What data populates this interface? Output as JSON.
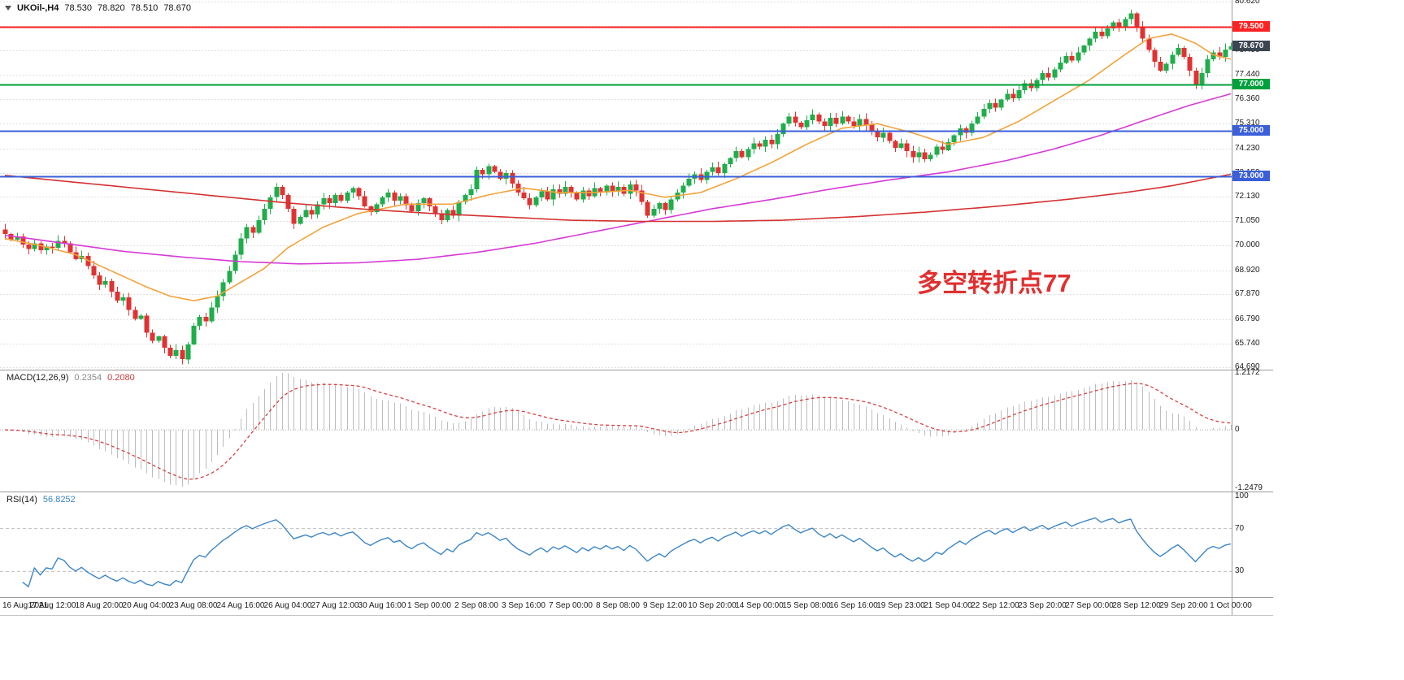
{
  "header": {
    "symbol": "UKOil-,H4",
    "open": "78.530",
    "high": "78.820",
    "low": "78.510",
    "close": "78.670"
  },
  "annotation": {
    "text": "多空转折点77",
    "color": "#e03030"
  },
  "colors": {
    "up": "#1fae4b",
    "down": "#e03232",
    "ma_fast": "#f2a33c",
    "ma_mid": "#d63ad6",
    "ma_slow": "#d43131",
    "macd_hist": "#bdbdbd",
    "macd_signal": "#d64040",
    "rsi_line": "#3c85c6",
    "current_badge": "#3c4652"
  },
  "price_axis": {
    "min": 64.6,
    "max": 80.68,
    "labels": [
      80.62,
      79.55,
      78.49,
      77.44,
      76.36,
      75.31,
      74.23,
      73.15,
      72.13,
      71.05,
      70.0,
      68.92,
      67.87,
      66.79,
      65.74,
      64.69
    ]
  },
  "chart_data": {
    "type": "candlestick",
    "symbol": "UKOil-",
    "timeframe": "H4",
    "title": "UKOil-,H4 78.530 78.820 78.510 78.670",
    "bars_per_label": 8,
    "x_labels": [
      "16 Aug 2021",
      "17 Aug 12:00",
      "18 Aug 20:00",
      "20 Aug 04:00",
      "23 Aug 08:00",
      "24 Aug 16:00",
      "26 Aug 04:00",
      "27 Aug 12:00",
      "30 Aug 16:00",
      "1 Sep 00:00",
      "2 Sep 08:00",
      "3 Sep 16:00",
      "7 Sep 00:00",
      "8 Sep 08:00",
      "9 Sep 12:00",
      "10 Sep 20:00",
      "14 Sep 00:00",
      "15 Sep 08:00",
      "16 Sep 16:00",
      "19 Sep 23:00",
      "21 Sep 04:00",
      "22 Sep 12:00",
      "23 Sep 20:00",
      "27 Sep 00:00",
      "28 Sep 12:00",
      "29 Sep 20:00",
      "1 Oct 00:00"
    ],
    "first_open": 70.7,
    "last_high": 78.82,
    "last_low": 78.51,
    "current_price": 78.67,
    "closes": [
      70.5,
      70.25,
      70.4,
      70.05,
      69.85,
      70.1,
      69.8,
      69.95,
      69.9,
      70.2,
      70.1,
      69.7,
      69.4,
      69.55,
      69.1,
      68.7,
      68.3,
      68.45,
      68.0,
      67.6,
      67.75,
      67.2,
      66.8,
      66.95,
      66.2,
      65.85,
      66.05,
      65.55,
      65.2,
      65.45,
      65.05,
      65.7,
      66.5,
      66.9,
      66.7,
      67.3,
      67.8,
      68.4,
      68.9,
      69.6,
      70.3,
      70.8,
      70.55,
      71.1,
      71.6,
      72.1,
      72.55,
      72.2,
      71.6,
      70.95,
      71.25,
      71.55,
      71.35,
      71.8,
      72.05,
      71.85,
      72.2,
      71.95,
      72.3,
      72.5,
      72.15,
      71.7,
      71.45,
      71.8,
      72.1,
      72.3,
      71.95,
      72.15,
      71.75,
      71.5,
      71.85,
      72.05,
      71.7,
      71.4,
      71.1,
      71.55,
      71.3,
      71.9,
      72.2,
      72.45,
      73.3,
      73.1,
      73.45,
      73.2,
      72.9,
      73.15,
      72.7,
      72.3,
      72.05,
      71.75,
      72.1,
      72.35,
      72.0,
      72.45,
      72.25,
      72.55,
      72.3,
      72.0,
      72.4,
      72.15,
      72.5,
      72.3,
      72.6,
      72.35,
      72.55,
      72.25,
      72.65,
      72.4,
      71.9,
      71.3,
      71.6,
      71.85,
      71.55,
      72.0,
      72.3,
      72.6,
      72.9,
      73.1,
      72.85,
      73.2,
      73.4,
      73.15,
      73.55,
      73.8,
      74.1,
      73.85,
      74.2,
      74.45,
      74.3,
      74.6,
      74.4,
      74.85,
      75.3,
      75.6,
      75.35,
      75.15,
      75.45,
      75.7,
      75.4,
      75.2,
      75.55,
      75.3,
      75.6,
      75.4,
      75.2,
      75.5,
      75.25,
      74.95,
      74.7,
      74.9,
      74.55,
      74.25,
      74.45,
      74.1,
      73.85,
      74.05,
      73.75,
      73.95,
      74.3,
      74.15,
      74.5,
      74.8,
      75.1,
      74.9,
      75.3,
      75.6,
      75.95,
      76.2,
      76.0,
      76.35,
      76.6,
      76.4,
      76.75,
      77.05,
      76.85,
      77.2,
      77.5,
      77.3,
      77.65,
      77.95,
      78.25,
      78.05,
      78.4,
      78.7,
      79.0,
      79.3,
      79.1,
      79.45,
      79.7,
      79.5,
      79.85,
      80.1,
      79.5,
      79.0,
      78.5,
      78.0,
      77.6,
      77.9,
      78.3,
      78.6,
      78.2,
      77.6,
      76.95,
      77.5,
      78.1,
      78.4,
      78.2,
      78.53,
      78.67
    ],
    "hlines": [
      {
        "price": 79.5,
        "label": "79.500",
        "color": "#ff2222"
      },
      {
        "price": 77.0,
        "label": "77.000",
        "color": "#00a13c"
      },
      {
        "price": 75.0,
        "label": "75.000",
        "color": "#3a5fd9"
      },
      {
        "price": 73.0,
        "label": "73.000",
        "color": "#3a5fd9"
      }
    ],
    "moving_averages": [
      {
        "name": "fast-orange",
        "color": "#f2a33c",
        "points": [
          [
            0,
            70.3
          ],
          [
            6,
            70.0
          ],
          [
            12,
            69.6
          ],
          [
            18,
            68.9
          ],
          [
            24,
            68.2
          ],
          [
            28,
            67.8
          ],
          [
            32,
            67.6
          ],
          [
            36,
            67.8
          ],
          [
            40,
            68.4
          ],
          [
            44,
            69.0
          ],
          [
            48,
            69.9
          ],
          [
            54,
            70.8
          ],
          [
            60,
            71.4
          ],
          [
            68,
            71.8
          ],
          [
            76,
            71.8
          ],
          [
            82,
            72.2
          ],
          [
            88,
            72.5
          ],
          [
            94,
            72.3
          ],
          [
            100,
            72.3
          ],
          [
            106,
            72.4
          ],
          [
            112,
            72.1
          ],
          [
            118,
            72.3
          ],
          [
            124,
            72.9
          ],
          [
            130,
            73.6
          ],
          [
            136,
            74.4
          ],
          [
            142,
            75.1
          ],
          [
            148,
            75.3
          ],
          [
            154,
            74.9
          ],
          [
            160,
            74.4
          ],
          [
            166,
            74.7
          ],
          [
            172,
            75.4
          ],
          [
            178,
            76.3
          ],
          [
            184,
            77.2
          ],
          [
            190,
            78.3
          ],
          [
            194,
            79.0
          ],
          [
            198,
            79.2
          ],
          [
            202,
            78.8
          ],
          [
            205,
            78.3
          ],
          [
            208,
            78.1
          ]
        ]
      },
      {
        "name": "mid-magenta",
        "color": "#d63ad6",
        "points": [
          [
            0,
            70.45
          ],
          [
            10,
            70.1
          ],
          [
            20,
            69.75
          ],
          [
            30,
            69.5
          ],
          [
            40,
            69.3
          ],
          [
            50,
            69.2
          ],
          [
            60,
            69.25
          ],
          [
            70,
            69.4
          ],
          [
            80,
            69.7
          ],
          [
            90,
            70.1
          ],
          [
            100,
            70.6
          ],
          [
            110,
            71.1
          ],
          [
            120,
            71.6
          ],
          [
            130,
            72.0
          ],
          [
            140,
            72.45
          ],
          [
            150,
            72.85
          ],
          [
            160,
            73.2
          ],
          [
            170,
            73.7
          ],
          [
            178,
            74.2
          ],
          [
            186,
            74.8
          ],
          [
            194,
            75.5
          ],
          [
            201,
            76.1
          ],
          [
            208,
            76.6
          ]
        ]
      },
      {
        "name": "slow-red",
        "color": "#d43131",
        "points": [
          [
            0,
            73.05
          ],
          [
            12,
            72.75
          ],
          [
            24,
            72.45
          ],
          [
            36,
            72.15
          ],
          [
            48,
            71.85
          ],
          [
            60,
            71.6
          ],
          [
            72,
            71.4
          ],
          [
            84,
            71.25
          ],
          [
            96,
            71.1
          ],
          [
            108,
            71.05
          ],
          [
            120,
            71.05
          ],
          [
            132,
            71.1
          ],
          [
            144,
            71.25
          ],
          [
            156,
            71.45
          ],
          [
            168,
            71.7
          ],
          [
            180,
            72.0
          ],
          [
            190,
            72.3
          ],
          [
            198,
            72.6
          ],
          [
            203,
            72.85
          ],
          [
            208,
            73.1
          ]
        ]
      }
    ],
    "macd": {
      "label": "MACD(12,26,9)",
      "value_main": "0.2354",
      "value_signal": "0.2080",
      "params": [
        12,
        26,
        9
      ],
      "axis": [
        1.2172,
        0,
        -1.2479
      ]
    },
    "rsi": {
      "label": "RSI(14)",
      "value": "56.8252",
      "period": 14,
      "axis": [
        100,
        70,
        30
      ],
      "levels": [
        70,
        30
      ]
    }
  }
}
